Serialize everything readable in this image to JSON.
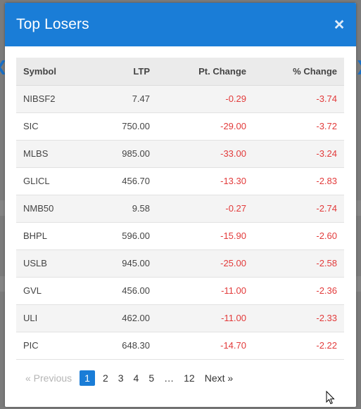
{
  "modal": {
    "title": "Top Losers",
    "close_glyph": "×"
  },
  "table": {
    "headers": {
      "symbol": "Symbol",
      "ltp": "LTP",
      "pt_change": "Pt. Change",
      "pct_change": "% Change"
    },
    "rows": [
      {
        "symbol": "NIBSF2",
        "ltp": "7.47",
        "pt_change": "-0.29",
        "pct_change": "-3.74"
      },
      {
        "symbol": "SIC",
        "ltp": "750.00",
        "pt_change": "-29.00",
        "pct_change": "-3.72"
      },
      {
        "symbol": "MLBS",
        "ltp": "985.00",
        "pt_change": "-33.00",
        "pct_change": "-3.24"
      },
      {
        "symbol": "GLICL",
        "ltp": "456.70",
        "pt_change": "-13.30",
        "pct_change": "-2.83"
      },
      {
        "symbol": "NMB50",
        "ltp": "9.58",
        "pt_change": "-0.27",
        "pct_change": "-2.74"
      },
      {
        "symbol": "BHPL",
        "ltp": "596.00",
        "pt_change": "-15.90",
        "pct_change": "-2.60"
      },
      {
        "symbol": "USLB",
        "ltp": "945.00",
        "pt_change": "-25.00",
        "pct_change": "-2.58"
      },
      {
        "symbol": "GVL",
        "ltp": "456.00",
        "pt_change": "-11.00",
        "pct_change": "-2.36"
      },
      {
        "symbol": "ULI",
        "ltp": "462.00",
        "pt_change": "-11.00",
        "pct_change": "-2.33"
      },
      {
        "symbol": "PIC",
        "ltp": "648.30",
        "pt_change": "-14.70",
        "pct_change": "-2.22"
      }
    ]
  },
  "pagination": {
    "previous": "«  Previous",
    "pages": [
      "1",
      "2",
      "3",
      "4",
      "5",
      "…",
      "12"
    ],
    "current": "1",
    "next": "Next  »"
  },
  "colors": {
    "header_bg": "#1a7dd7",
    "negative": "#e23a3a",
    "active_page": "#1a7dd7"
  }
}
